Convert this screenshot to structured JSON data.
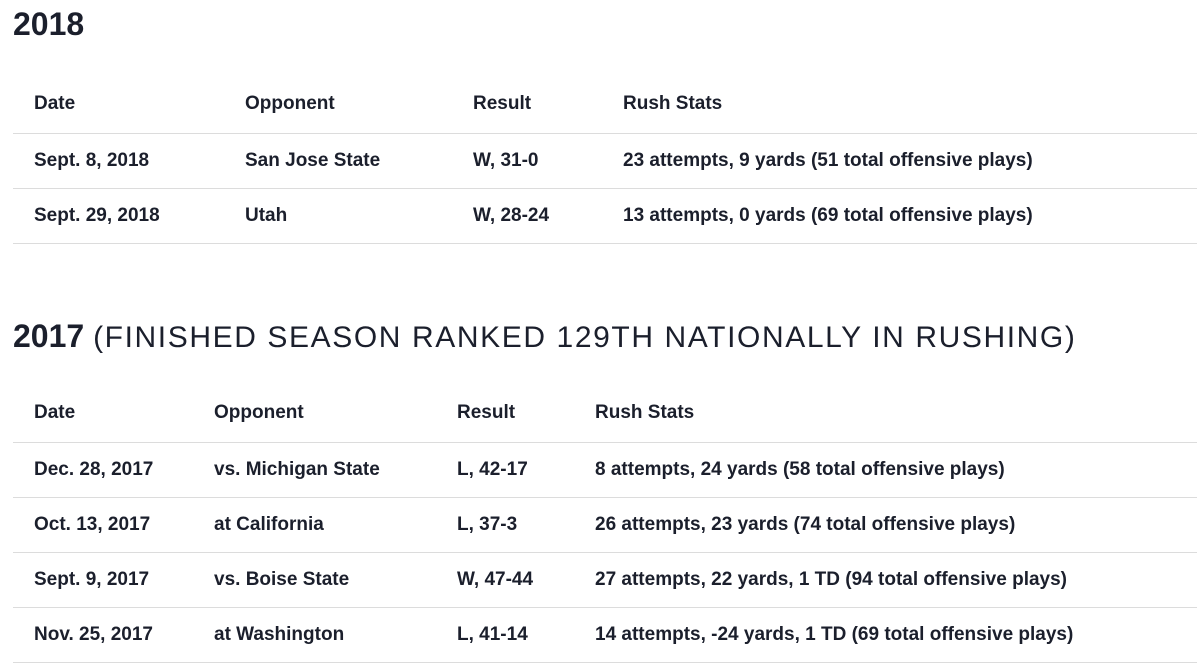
{
  "sections": [
    {
      "year": "2018",
      "note": "",
      "headers": [
        "Date",
        "Opponent",
        "Result",
        "Rush Stats"
      ],
      "rows": [
        [
          "Sept. 8, 2018",
          "San Jose State",
          "W, 31-0",
          "23 attempts, 9 yards (51 total offensive plays)"
        ],
        [
          "Sept. 29, 2018",
          "Utah",
          "W, 28-24",
          "13 attempts, 0 yards (69 total offensive plays)"
        ]
      ]
    },
    {
      "year": "2017",
      "note": "(FINISHED SEASON RANKED 129TH NATIONALLY IN RUSHING)",
      "headers": [
        "Date",
        "Opponent",
        "Result",
        "Rush Stats"
      ],
      "rows": [
        [
          "Dec. 28, 2017",
          "vs. Michigan State",
          "L, 42-17",
          "8 attempts, 24 yards (58 total offensive plays)"
        ],
        [
          "Oct. 13, 2017",
          "at California",
          "L, 37-3",
          "26 attempts, 23 yards (74 total offensive plays)"
        ],
        [
          "Sept. 9, 2017",
          "vs. Boise State",
          "W, 47-44",
          "27 attempts, 22 yards, 1 TD (94 total offensive plays)"
        ],
        [
          "Nov. 25, 2017",
          "at Washington",
          "L, 41-14",
          "14 attempts, -24 yards, 1 TD (69 total offensive plays)"
        ]
      ]
    }
  ],
  "colors": {
    "text": "#1b1f2c",
    "rule": "#dcdcdc"
  }
}
